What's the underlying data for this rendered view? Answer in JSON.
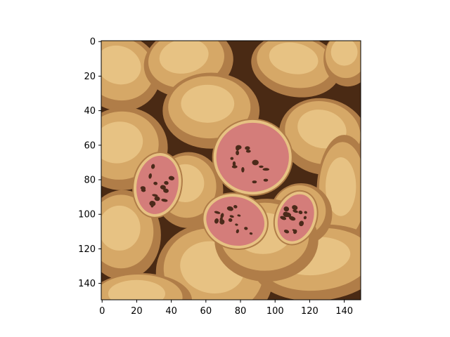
{
  "chart_data": {
    "type": "heatmap",
    "title": "",
    "xlabel": "",
    "ylabel": "",
    "image_size": [
      150,
      150
    ],
    "xlim": [
      -0.5,
      149.5
    ],
    "ylim": [
      149.5,
      -0.5
    ],
    "y_axis_inverted": true,
    "x_ticks": [
      0,
      20,
      40,
      60,
      80,
      100,
      120,
      140
    ],
    "y_ticks": [
      0,
      20,
      40,
      60,
      80,
      100,
      120,
      140
    ],
    "x_tick_labels": [
      "0",
      "20",
      "40",
      "60",
      "80",
      "100",
      "120",
      "140"
    ],
    "y_tick_labels": [
      "0",
      "20",
      "40",
      "60",
      "80",
      "100",
      "120",
      "140"
    ],
    "palette": {
      "dark_brown": "#4a2a14",
      "mid_brown": "#b07d48",
      "tan": "#d6a867",
      "light_tan": "#e7c283",
      "pink_flesh": "#d47d7a",
      "seed_dark": "#4b2a1a"
    },
    "image_content": "posterized photo of whole potatoes with several cut halves showing pink flesh"
  }
}
